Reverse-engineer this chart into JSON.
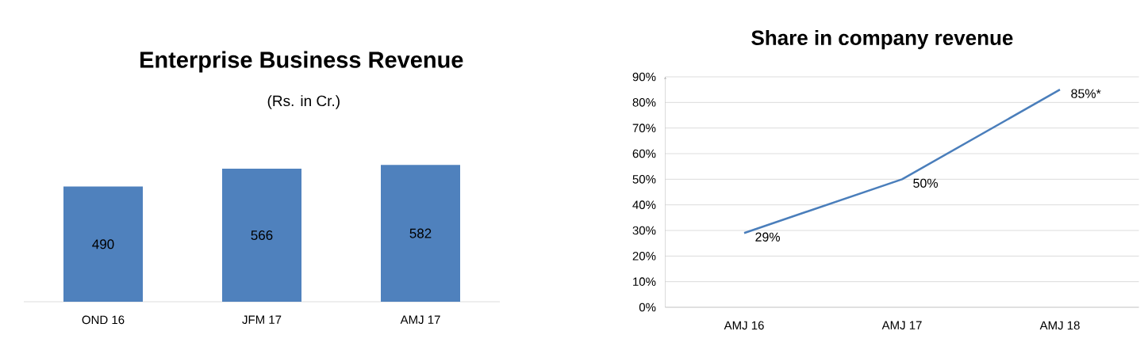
{
  "chart_data": [
    {
      "type": "bar",
      "title": "Enterprise Business Revenue",
      "subtitle": "(Rs. in Cr.)",
      "categories": [
        "OND 16",
        "JFM 17",
        "AMJ 17"
      ],
      "values": [
        490,
        566,
        582
      ],
      "color": "#4f81bd",
      "data_labels": true,
      "tick_labels": "x"
    },
    {
      "type": "line",
      "title": "Share in company revenue",
      "categories": [
        "AMJ 16",
        "AMJ 17",
        "AMJ 18"
      ],
      "values": [
        29,
        50,
        85
      ],
      "value_labels": [
        "29%",
        "50%",
        "85%*"
      ],
      "color": "#4a7ebb",
      "ylim": [
        0,
        90
      ],
      "yticks": [
        {
          "value": 0,
          "label": "0%"
        },
        {
          "value": 10,
          "label": "10%"
        },
        {
          "value": 20,
          "label": "20%"
        },
        {
          "value": 30,
          "label": "30%"
        },
        {
          "value": 40,
          "label": "40%"
        },
        {
          "value": 50,
          "label": "50%"
        },
        {
          "value": 60,
          "label": "60%"
        },
        {
          "value": 70,
          "label": "70%"
        },
        {
          "value": 80,
          "label": "80%"
        },
        {
          "value": 90,
          "label": "90%"
        }
      ],
      "grid": "y",
      "marker": "none",
      "line_style": "solid"
    }
  ]
}
